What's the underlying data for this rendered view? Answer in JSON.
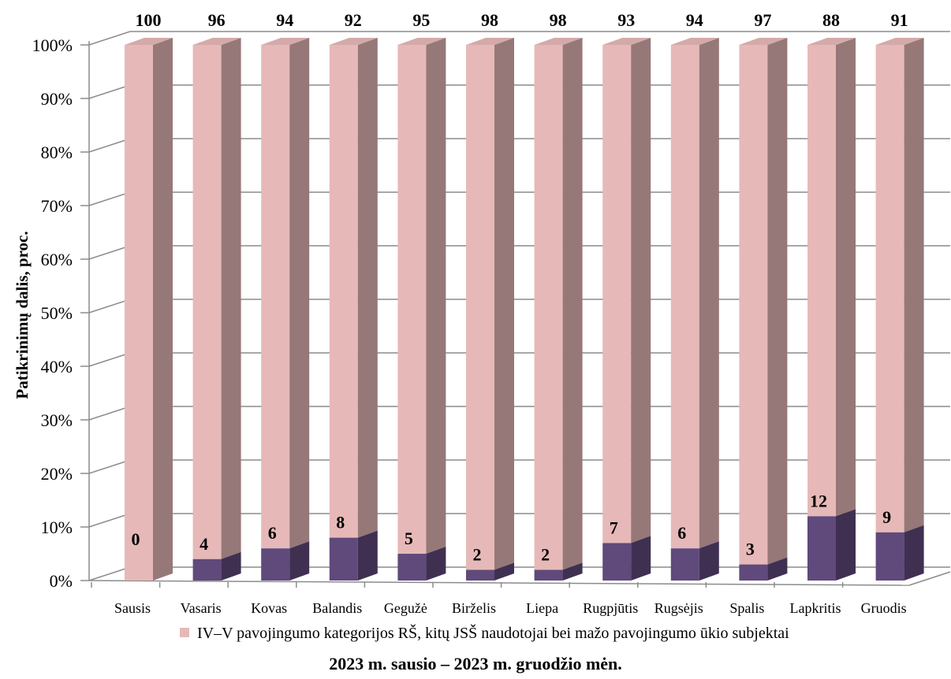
{
  "chart_data": {
    "type": "bar",
    "stacked": true,
    "percent": true,
    "three_d": true,
    "xlabel": "2023 m. sausio – 2023 m. gruodžio mėn.",
    "ylabel": "Patikrinimų dalis, proc.",
    "ylim": [
      0,
      100
    ],
    "yticks": [
      "0%",
      "10%",
      "20%",
      "30%",
      "40%",
      "50%",
      "60%",
      "70%",
      "80%",
      "90%",
      "100%"
    ],
    "grid": true,
    "legend_position": "bottom",
    "categories": [
      "Sausis",
      "Vasaris",
      "Kovas",
      "Balandis",
      "Gegužė",
      "Birželis",
      "Liepa",
      "Rugpjūtis",
      "Rugsėjis",
      "Spalis",
      "Lapkritis",
      "Gruodis"
    ],
    "series": [
      {
        "name": "",
        "color": "#5f4a7b",
        "values": [
          0,
          4,
          6,
          8,
          5,
          2,
          2,
          7,
          6,
          3,
          12,
          9
        ]
      },
      {
        "name": "IV–V pavojingumo kategorijos RŠ, kitų JSŠ naudotojai bei mažo pavojingumo ūkio subjektai",
        "color": "#e6b9b8",
        "values": [
          100,
          96,
          94,
          92,
          95,
          98,
          98,
          93,
          94,
          97,
          88,
          91
        ]
      }
    ]
  }
}
